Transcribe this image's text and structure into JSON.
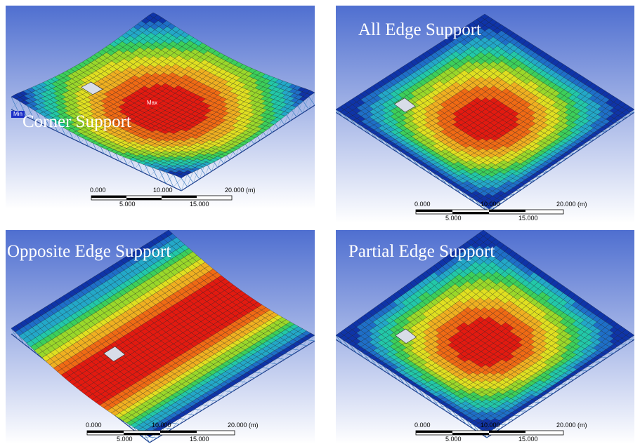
{
  "panels": [
    {
      "id": "corner",
      "title": "Corner Support",
      "min_label": "Min",
      "max_label": "Max",
      "pattern": "corner",
      "scale": {
        "top": [
          "0.000",
          "10.000",
          "20.000 (m)"
        ],
        "bottom": [
          "5.000",
          "15.000"
        ]
      }
    },
    {
      "id": "all-edge",
      "title": "All Edge Support",
      "pattern": "radial",
      "scale": {
        "top": [
          "0.000",
          "10.000",
          "20.000 (m)"
        ],
        "bottom": [
          "5.000",
          "15.000"
        ]
      }
    },
    {
      "id": "opposite-edge",
      "title": "Opposite Edge Support",
      "pattern": "band",
      "scale": {
        "top": [
          "0.000",
          "10.000",
          "20.000 (m)"
        ],
        "bottom": [
          "5.000",
          "15.000"
        ]
      }
    },
    {
      "id": "partial-edge",
      "title": "Partial Edge Support",
      "pattern": "radial2",
      "scale": {
        "top": [
          "0.000",
          "10.000",
          "20.000 (m)"
        ],
        "bottom": [
          "5.000",
          "15.000"
        ]
      }
    }
  ],
  "colors": {
    "background_top": "#4f6fd0",
    "background_bottom": "#ffffff",
    "contour": [
      "#0f34a8",
      "#1e6fc8",
      "#23a8c8",
      "#22c8a8",
      "#3ccf5a",
      "#9ad82a",
      "#e0e020",
      "#f0b020",
      "#f06a14",
      "#e31a10"
    ],
    "min_tag": "#1b2fc8",
    "max_tag": "#e01010"
  }
}
